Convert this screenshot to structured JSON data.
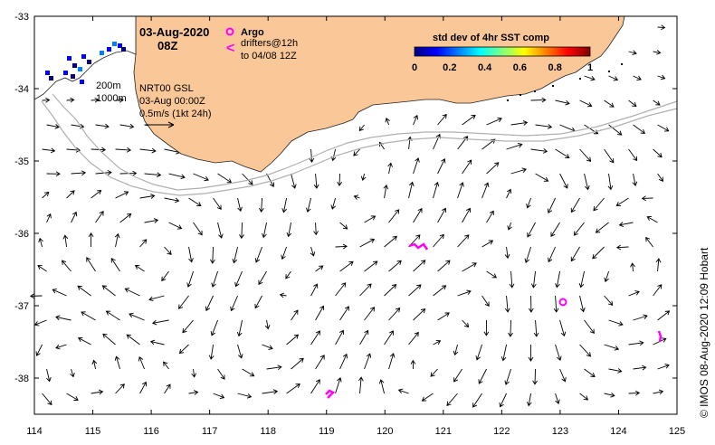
{
  "map": {
    "date": "03-Aug-2020",
    "time": "08Z",
    "lon_ticks": [
      "114",
      "115",
      "116",
      "117",
      "118",
      "119",
      "120",
      "121",
      "122",
      "123",
      "124",
      "125"
    ],
    "lat_ticks": [
      "-33",
      "-34",
      "-35",
      "-36",
      "-37",
      "-38"
    ],
    "lon_range": [
      114,
      125
    ],
    "lat_range": [
      -38.5,
      -33
    ],
    "land_color": "#fac898",
    "isobath_color": "#b0b0b0"
  },
  "isobaths": {
    "shallow": "200m",
    "deep": "1000m"
  },
  "velocity": {
    "product": "NRT00 GSL",
    "valid_time": "03-Aug 00:00Z",
    "scale": "0.5m/s (1kt 24h)"
  },
  "legend": {
    "argo_label": "Argo",
    "argo_color": "#ff00ff",
    "drifter_symbol": "<",
    "drifter_line1": "drifters@12h",
    "drifter_line2": "to 04/08 12Z"
  },
  "colorbar": {
    "title": "std dev of 4hr SST comp",
    "ticks": [
      "0",
      "0.2",
      "0.4",
      "0.6",
      "0.8",
      "1"
    ],
    "colors": [
      "#00007f",
      "#0000ff",
      "#007fff",
      "#00ffff",
      "#7fff7f",
      "#ffff00",
      "#ff7f00",
      "#ff0000",
      "#7f0000"
    ]
  },
  "credit": "© IMOS 08-Aug-2020 12:09 Hobart"
}
